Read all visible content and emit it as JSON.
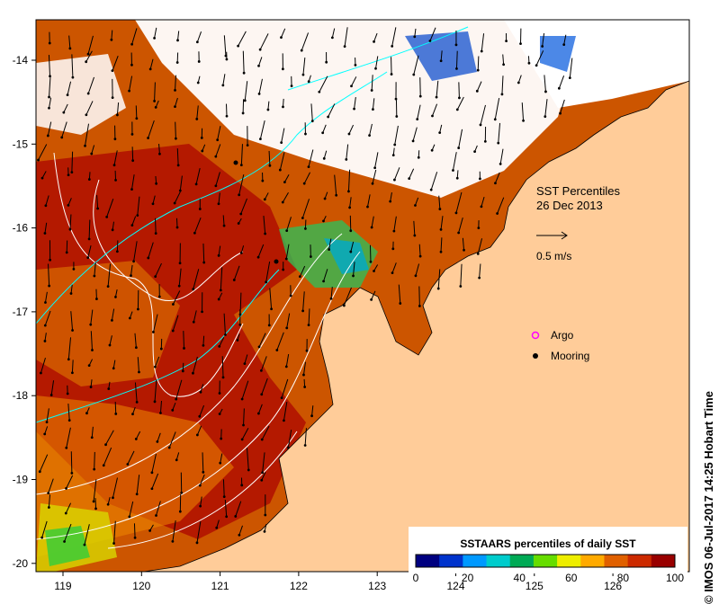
{
  "map": {
    "title": "SST Percentiles",
    "date": "26 Dec 2013",
    "scale_label": "0.5 m/s",
    "legend": {
      "argo_label": "Argo",
      "mooring_label": "Mooring"
    },
    "x_ticks": [
      "119",
      "120",
      "121",
      "122",
      "123",
      "124",
      "125",
      "126"
    ],
    "y_ticks": [
      "-14",
      "-15",
      "-16",
      "-17",
      "-18",
      "-19",
      "-20"
    ],
    "colorbar": {
      "title": "SSTAARS percentiles of daily SST",
      "tick_labels": [
        "0",
        "20",
        "40",
        "60",
        "80",
        "100"
      ],
      "colors": [
        "#000080",
        "#0033cc",
        "#0099ff",
        "#00cccc",
        "#00aa55",
        "#66dd00",
        "#eeee00",
        "#ffaa00",
        "#e06000",
        "#cc2a00",
        "#990000"
      ]
    },
    "credit": "© IMOS 06-Jul-2017 14:25 Hobart Time",
    "land_color": "#ffcc99"
  }
}
